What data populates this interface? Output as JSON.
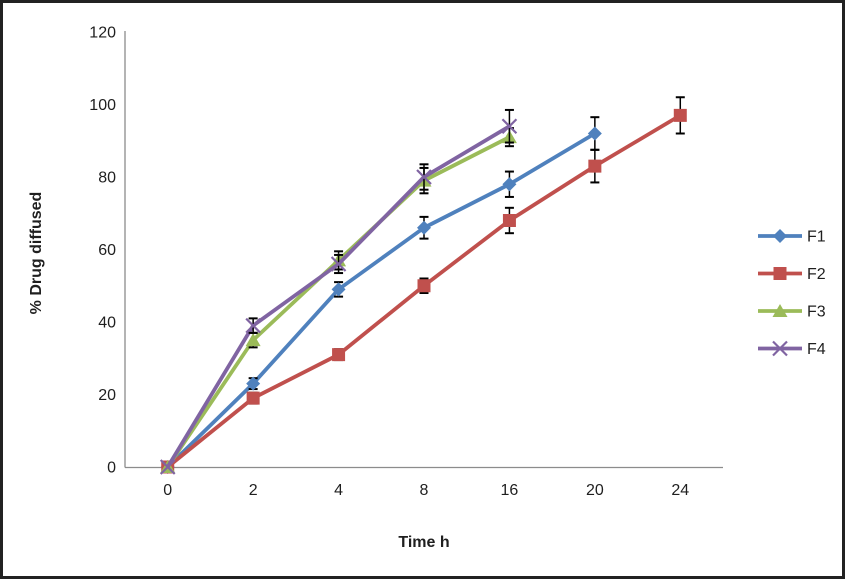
{
  "window": {
    "background": "#ffffff",
    "border_color": "#222222"
  },
  "chart_data": {
    "type": "line",
    "title": "",
    "xlabel": "Time h",
    "ylabel": "% Drug diffused",
    "categories": [
      "0",
      "2",
      "4",
      "8",
      "16",
      "20",
      "24"
    ],
    "y_ticks": [
      0,
      20,
      40,
      60,
      80,
      100,
      120
    ],
    "ylim": [
      0,
      120
    ],
    "grid": false,
    "legend_position": "right",
    "axis_color": "#8c8c8c",
    "error_bar_color": "#000000",
    "series": [
      {
        "name": "F1",
        "color": "#4F81BD",
        "marker": "diamond",
        "values": [
          0,
          23,
          49,
          66,
          78,
          92,
          null
        ],
        "errors": [
          0,
          1.5,
          2,
          3,
          3.5,
          4.5,
          null
        ]
      },
      {
        "name": "F2",
        "color": "#C0504D",
        "marker": "square",
        "values": [
          0,
          19,
          31,
          50,
          68,
          83,
          97
        ],
        "errors": [
          0,
          1.5,
          1.5,
          2,
          3.5,
          4.5,
          5
        ]
      },
      {
        "name": "F3",
        "color": "#9BBB59",
        "marker": "triangle",
        "values": [
          0,
          35,
          57,
          79,
          91,
          null,
          null
        ],
        "errors": [
          0,
          2,
          2.5,
          3.5,
          2.5,
          null,
          null
        ]
      },
      {
        "name": "F4",
        "color": "#8064A2",
        "marker": "x",
        "values": [
          0,
          39,
          56,
          80,
          94,
          null,
          null
        ],
        "errors": [
          0,
          2,
          2.5,
          3.5,
          4.5,
          null,
          null
        ]
      }
    ]
  }
}
